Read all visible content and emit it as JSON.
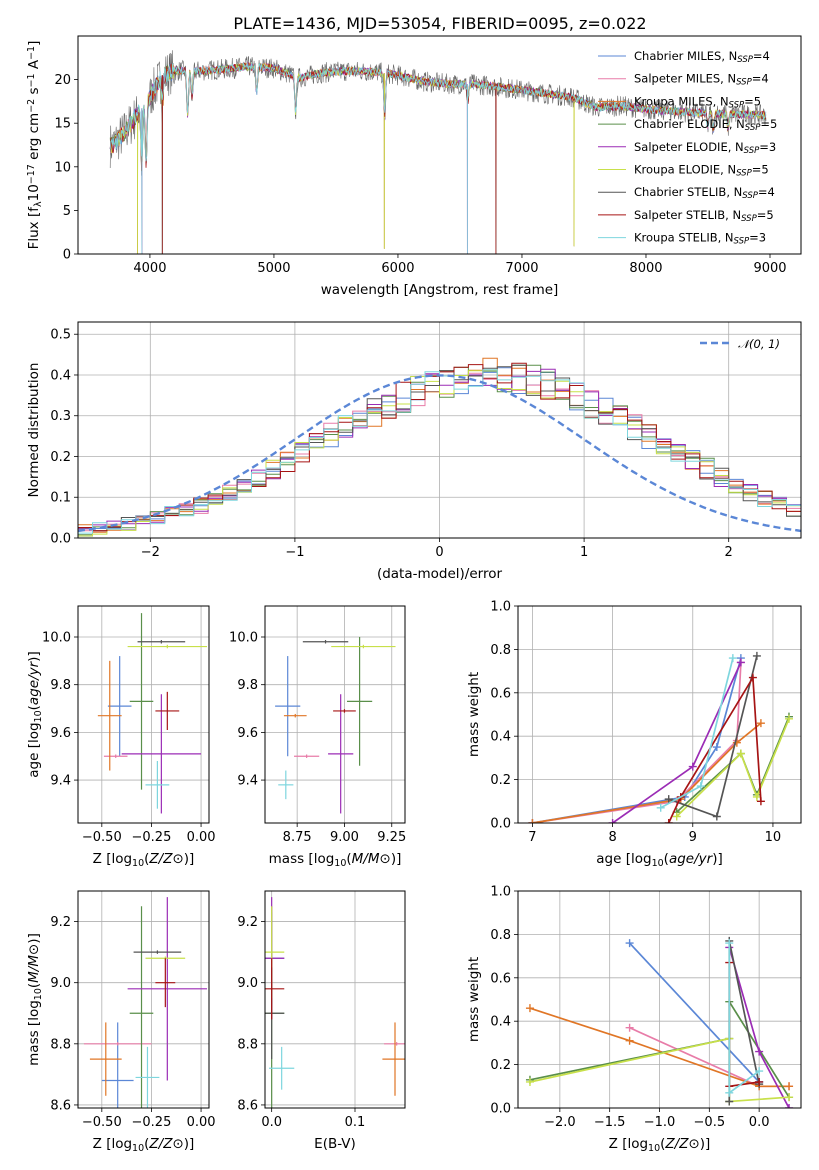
{
  "title": "PLATE=1436, MJD=53054, FIBERID=0095, z=0.022",
  "colors": {
    "Chabrier MILES": "#5b87d6",
    "Salpeter MILES": "#e87ca8",
    "Kroupa MILES": "#e07626",
    "Chabrier ELODIE": "#5a8f4a",
    "Salpeter ELODIE": "#9b2cb5",
    "Kroupa ELODIE": "#c8e04a",
    "Chabrier STELIB": "#555555",
    "Salpeter STELIB": "#a61414",
    "Kroupa STELIB": "#7ed6de",
    "gaussian": "#5b87d6"
  },
  "chart_data": [
    {
      "type": "line",
      "name": "spectrum",
      "xlabel": "wavelength [Angstrom, rest frame]",
      "ylabel_parts": [
        "Flux [f",
        "λ",
        "10",
        "−17",
        " erg cm",
        "−2",
        " s",
        "−1",
        " A",
        "−1",
        "]"
      ],
      "xlim": [
        3420,
        9250
      ],
      "ylim": [
        0,
        25
      ],
      "xticks": [
        4000,
        5000,
        6000,
        7000,
        8000,
        9000
      ],
      "yticks": [
        0,
        5,
        10,
        15,
        20
      ],
      "legend_position": "top-right",
      "legend": [
        {
          "label": "Chabrier MILES",
          "nssp": "4"
        },
        {
          "label": "Salpeter MILES",
          "nssp": "4"
        },
        {
          "label": "Kroupa MILES",
          "nssp": "5"
        },
        {
          "label": "Chabrier ELODIE",
          "nssp": "5"
        },
        {
          "label": "Salpeter ELODIE",
          "nssp": "3"
        },
        {
          "label": "Kroupa ELODIE",
          "nssp": "5"
        },
        {
          "label": "Chabrier STELIB",
          "nssp": "4"
        },
        {
          "label": "Salpeter STELIB",
          "nssp": "5"
        },
        {
          "label": "Kroupa STELIB",
          "nssp": "3"
        }
      ],
      "legend_nssp_prefix": "N",
      "legend_nssp_sub": "SSP",
      "continuum": [
        [
          3700,
          12.5
        ],
        [
          3800,
          14
        ],
        [
          3900,
          16
        ],
        [
          4000,
          18
        ],
        [
          4100,
          20.5
        ],
        [
          4200,
          21
        ],
        [
          4400,
          21
        ],
        [
          4600,
          21.2
        ],
        [
          4800,
          21.5
        ],
        [
          5000,
          21.3
        ],
        [
          5200,
          20.2
        ],
        [
          5400,
          20.8
        ],
        [
          5600,
          21
        ],
        [
          5800,
          20.9
        ],
        [
          6000,
          20.5
        ],
        [
          6200,
          19.8
        ],
        [
          6400,
          19.5
        ],
        [
          6600,
          19.5
        ],
        [
          6800,
          19.2
        ],
        [
          7000,
          18.8
        ],
        [
          7200,
          18.4
        ],
        [
          7400,
          18
        ],
        [
          7600,
          16.8
        ],
        [
          7800,
          17
        ],
        [
          8000,
          16.6
        ],
        [
          8200,
          16.4
        ],
        [
          8400,
          16.2
        ],
        [
          8600,
          16.1
        ],
        [
          8800,
          16
        ],
        [
          8950,
          15.9
        ]
      ],
      "absorption_features": [
        [
          3934,
          6.5
        ],
        [
          3969,
          7
        ],
        [
          4102,
          3
        ],
        [
          4304,
          5
        ],
        [
          4340,
          3
        ],
        [
          4861,
          3
        ],
        [
          5175,
          4
        ],
        [
          5893,
          5
        ],
        [
          6563,
          2
        ],
        [
          8498,
          1.5
        ],
        [
          8542,
          2
        ],
        [
          8662,
          1.6
        ]
      ],
      "data_dropouts": [
        [
          3900,
          0
        ],
        [
          3935,
          0
        ],
        [
          4100,
          0
        ],
        [
          5890,
          0.6
        ],
        [
          6560,
          0
        ],
        [
          6790,
          0
        ],
        [
          7420,
          0.9
        ]
      ]
    },
    {
      "type": "line",
      "name": "residual-histogram",
      "xlabel": "(data-model)/error",
      "ylabel": "Normed distribution",
      "xlim": [
        -2.5,
        2.5
      ],
      "ylim": [
        0,
        0.53
      ],
      "xticks": [
        -2,
        -1,
        0,
        1,
        2
      ],
      "xtick_labels": [
        "−2",
        "−1",
        "0",
        "1",
        "2"
      ],
      "yticks": [
        0,
        0.1,
        0.2,
        0.3,
        0.4,
        0.5
      ],
      "ytick_labels": [
        "0.0",
        "0.1",
        "0.2",
        "0.3",
        "0.4",
        "0.5"
      ],
      "legend": "𝒩(0, 1)",
      "legend_position": "top-right",
      "bin_width": 0.1,
      "bin_start": -2.5,
      "series_base": [
        0.02,
        0.025,
        0.03,
        0.035,
        0.04,
        0.05,
        0.06,
        0.07,
        0.08,
        0.095,
        0.11,
        0.13,
        0.15,
        0.17,
        0.19,
        0.21,
        0.23,
        0.25,
        0.27,
        0.29,
        0.31,
        0.33,
        0.345,
        0.36,
        0.375,
        0.385,
        0.395,
        0.4,
        0.4,
        0.4,
        0.395,
        0.385,
        0.375,
        0.36,
        0.345,
        0.33,
        0.31,
        0.29,
        0.27,
        0.25,
        0.23,
        0.21,
        0.19,
        0.17,
        0.15,
        0.13,
        0.11,
        0.095,
        0.08,
        0.07
      ],
      "gaussian": {
        "mu": 0,
        "sigma": 1
      }
    },
    {
      "type": "scatter",
      "name": "age-vs-Z",
      "xlabel": "Z [log10(Z/Z⊙)]",
      "ylabel": "age [log10(age/yr)]",
      "xlim": [
        -0.62,
        0.04
      ],
      "ylim": [
        9.22,
        10.13
      ],
      "xticks": [
        -0.5,
        -0.25,
        0
      ],
      "xtick_labels": [
        "−0.50",
        "−0.25",
        "0.00"
      ],
      "yticks": [
        9.4,
        9.6,
        9.8,
        10.0
      ],
      "ytick_labels": [
        "9.4",
        "9.6",
        "9.8",
        "10.0"
      ],
      "points": [
        {
          "model": "Chabrier MILES",
          "x": -0.41,
          "y": 9.71,
          "xerr": 0.0,
          "yerr": 0.21
        },
        {
          "model": "Salpeter MILES",
          "x": -0.43,
          "y": 9.5,
          "xerr": 0.0,
          "yerr": 0.0
        },
        {
          "model": "Kroupa MILES",
          "x": -0.46,
          "y": 9.67,
          "xerr": 0.06,
          "yerr": 0.23
        },
        {
          "model": "Chabrier ELODIE",
          "x": -0.3,
          "y": 9.73,
          "xerr": 0.0,
          "yerr": 0.37
        },
        {
          "model": "Salpeter ELODIE",
          "x": -0.2,
          "y": 9.51,
          "xerr": 0.2,
          "yerr": 0.25
        },
        {
          "model": "Kroupa ELODIE",
          "x": -0.17,
          "y": 9.96,
          "xerr": 0.2,
          "yerr": 0.0
        },
        {
          "model": "Chabrier STELIB",
          "x": -0.2,
          "y": 9.98,
          "xerr": 0.12,
          "yerr": 0.0
        },
        {
          "model": "Salpeter STELIB",
          "x": -0.17,
          "y": 9.69,
          "xerr": 0.06,
          "yerr": 0.08
        },
        {
          "model": "Kroupa STELIB",
          "x": -0.22,
          "y": 9.38,
          "xerr": 0.06,
          "yerr": 0.1
        }
      ]
    },
    {
      "type": "scatter",
      "name": "age-vs-mass",
      "xlabel": "mass [log10(M/M⊙)]",
      "ylabel": "",
      "xlim": [
        8.58,
        9.32
      ],
      "ylim": [
        9.22,
        10.13
      ],
      "xticks": [
        8.75,
        9.0,
        9.25
      ],
      "xtick_labels": [
        "8.75",
        "9.00",
        "9.25"
      ],
      "yticks": [
        9.4,
        9.6,
        9.8,
        10.0
      ],
      "ytick_labels": [
        "9.4",
        "9.6",
        "9.8",
        "10.0"
      ],
      "points": [
        {
          "model": "Chabrier MILES",
          "x": 8.7,
          "y": 9.71,
          "xerr": 0.0,
          "yerr": 0.21
        },
        {
          "model": "Salpeter MILES",
          "x": 8.8,
          "y": 9.5,
          "xerr": 0.0,
          "yerr": 0.0
        },
        {
          "model": "Kroupa MILES",
          "x": 8.74,
          "y": 9.67,
          "xerr": 0.06,
          "yerr": 0.0
        },
        {
          "model": "Chabrier ELODIE",
          "x": 9.08,
          "y": 9.73,
          "xerr": 0.0,
          "yerr": 0.27
        },
        {
          "model": "Salpeter ELODIE",
          "x": 8.98,
          "y": 9.51,
          "xerr": 0.0,
          "yerr": 0.25
        },
        {
          "model": "Kroupa ELODIE",
          "x": 9.1,
          "y": 9.96,
          "xerr": 0.17,
          "yerr": 0.0
        },
        {
          "model": "Chabrier STELIB",
          "x": 8.9,
          "y": 9.98,
          "xerr": 0.12,
          "yerr": 0.0
        },
        {
          "model": "Salpeter STELIB",
          "x": 9.0,
          "y": 9.69,
          "xerr": 0.06,
          "yerr": 0.0
        },
        {
          "model": "Kroupa STELIB",
          "x": 8.69,
          "y": 9.38,
          "xerr": 0.04,
          "yerr": 0.06
        }
      ]
    },
    {
      "type": "line",
      "name": "mass-weight-vs-age",
      "xlabel": "age [log10(age/yr)]",
      "ylabel": "mass weight",
      "xlim": [
        6.82,
        10.35
      ],
      "ylim": [
        0,
        1
      ],
      "xticks": [
        7,
        8,
        9,
        10
      ],
      "yticks": [
        0,
        0.2,
        0.4,
        0.6,
        0.8,
        1.0
      ],
      "ytick_labels": [
        "0.0",
        "0.2",
        "0.4",
        "0.6",
        "0.8",
        "1.0"
      ],
      "series": [
        {
          "model": "Chabrier MILES",
          "x": [
            7.0,
            8.9,
            9.3,
            9.6
          ],
          "y": [
            0.0,
            0.12,
            0.35,
            0.76
          ]
        },
        {
          "model": "Salpeter MILES",
          "x": [
            7.0,
            8.8,
            9.55,
            9.6
          ],
          "y": [
            0.0,
            0.1,
            0.38,
            0.74
          ]
        },
        {
          "model": "Kroupa MILES",
          "x": [
            7.0,
            8.85,
            9.55,
            9.85
          ],
          "y": [
            0.0,
            0.11,
            0.37,
            0.46
          ]
        },
        {
          "model": "Chabrier ELODIE",
          "x": [
            8.8,
            9.6,
            9.8,
            10.2
          ],
          "y": [
            0.05,
            0.32,
            0.13,
            0.49
          ]
        },
        {
          "model": "Salpeter ELODIE",
          "x": [
            8.0,
            9.0,
            9.6
          ],
          "y": [
            0.0,
            0.26,
            0.74
          ]
        },
        {
          "model": "Kroupa ELODIE",
          "x": [
            8.8,
            9.6,
            9.8,
            10.2
          ],
          "y": [
            0.03,
            0.32,
            0.12,
            0.48
          ]
        },
        {
          "model": "Chabrier STELIB",
          "x": [
            8.7,
            9.3,
            9.8
          ],
          "y": [
            0.11,
            0.03,
            0.77
          ]
        },
        {
          "model": "Salpeter STELIB",
          "x": [
            8.7,
            8.85,
            9.75,
            9.85
          ],
          "y": [
            0.0,
            0.12,
            0.67,
            0.1
          ]
        },
        {
          "model": "Kroupa STELIB",
          "x": [
            8.6,
            9.1,
            9.5
          ],
          "y": [
            0.07,
            0.17,
            0.76
          ]
        }
      ]
    },
    {
      "type": "scatter",
      "name": "mass-vs-Z",
      "xlabel": "Z [log10(Z/Z⊙)]",
      "ylabel": "mass [log10(M/M⊙)]",
      "xlim": [
        -0.62,
        0.04
      ],
      "ylim": [
        8.59,
        9.3
      ],
      "xticks": [
        -0.5,
        -0.25,
        0
      ],
      "xtick_labels": [
        "−0.50",
        "−0.25",
        "0.00"
      ],
      "yticks": [
        8.6,
        8.8,
        9.0,
        9.2
      ],
      "ytick_labels": [
        "8.6",
        "8.8",
        "9.0",
        "9.2"
      ],
      "points": [
        {
          "model": "Chabrier MILES",
          "x": -0.42,
          "y": 8.68,
          "xerr": 0.08,
          "yerr": 0.19
        },
        {
          "model": "Salpeter MILES",
          "x": -0.42,
          "y": 8.8,
          "xerr": 0.17,
          "yerr": 0.0
        },
        {
          "model": "Kroupa MILES",
          "x": -0.48,
          "y": 8.75,
          "xerr": 0.08,
          "yerr": 0.12
        },
        {
          "model": "Chabrier ELODIE",
          "x": -0.3,
          "y": 8.9,
          "xerr": 0.0,
          "yerr": 0.35
        },
        {
          "model": "Salpeter ELODIE",
          "x": -0.17,
          "y": 8.98,
          "xerr": 0.2,
          "yerr": 0.3
        },
        {
          "model": "Kroupa ELODIE",
          "x": -0.18,
          "y": 9.08,
          "xerr": 0.1,
          "yerr": 0.0
        },
        {
          "model": "Chabrier STELIB",
          "x": -0.22,
          "y": 9.1,
          "xerr": 0.12,
          "yerr": 0.0
        },
        {
          "model": "Salpeter STELIB",
          "x": -0.18,
          "y": 9.0,
          "xerr": 0.05,
          "yerr": 0.08
        },
        {
          "model": "Kroupa STELIB",
          "x": -0.27,
          "y": 8.69,
          "xerr": 0.06,
          "yerr": 0.1
        }
      ]
    },
    {
      "type": "scatter",
      "name": "mass-vs-EBV",
      "xlabel": "E(B-V)",
      "ylabel": "",
      "xlim": [
        -0.008,
        0.16
      ],
      "ylim": [
        8.59,
        9.3
      ],
      "xticks": [
        0.0,
        0.1
      ],
      "xtick_labels": [
        "0.0",
        "0.1"
      ],
      "yticks": [
        8.6,
        8.8,
        9.0,
        9.2
      ],
      "ytick_labels": [
        "8.6",
        "8.8",
        "9.0",
        "9.2"
      ],
      "points": [
        {
          "model": "Chabrier MILES",
          "x": 0.0,
          "y": 9.08,
          "xerr": 0.0,
          "yerr": 0.15
        },
        {
          "model": "Salpeter MILES",
          "x": 0.15,
          "y": 8.8,
          "xerr": 0.0,
          "yerr": 0.0
        },
        {
          "model": "Kroupa MILES",
          "x": 0.148,
          "y": 8.75,
          "xerr": 0.0,
          "yerr": 0.12
        },
        {
          "model": "Chabrier ELODIE",
          "x": 0.0,
          "y": 8.9,
          "xerr": 0.0,
          "yerr": 0.35
        },
        {
          "model": "Salpeter ELODIE",
          "x": 0.0,
          "y": 9.08,
          "xerr": 0.0,
          "yerr": 0.2
        },
        {
          "model": "Kroupa ELODIE",
          "x": 0.0,
          "y": 9.1,
          "xerr": 0.0,
          "yerr": 0.15
        },
        {
          "model": "Chabrier STELIB",
          "x": 0.0,
          "y": 8.9,
          "xerr": 0.0,
          "yerr": 0.15
        },
        {
          "model": "Salpeter STELIB",
          "x": 0.0,
          "y": 8.98,
          "xerr": 0.0,
          "yerr": 0.1
        },
        {
          "model": "Kroupa STELIB",
          "x": 0.012,
          "y": 8.72,
          "xerr": 0.0,
          "yerr": 0.07
        }
      ]
    },
    {
      "type": "line",
      "name": "mass-weight-vs-Z",
      "xlabel": "Z [log10(Z/Z⊙)]",
      "ylabel": "mass weight",
      "xlim": [
        -2.42,
        0.42
      ],
      "ylim": [
        0,
        1
      ],
      "xticks": [
        -2.0,
        -1.5,
        -1.0,
        -0.5,
        0.0
      ],
      "xtick_labels": [
        "−2.0",
        "−1.5",
        "−1.0",
        "−0.5",
        "0.0"
      ],
      "yticks": [
        0,
        0.2,
        0.4,
        0.6,
        0.8,
        1.0
      ],
      "ytick_labels": [
        "0.0",
        "0.2",
        "0.4",
        "0.6",
        "0.8",
        "1.0"
      ],
      "series": [
        {
          "model": "Chabrier MILES",
          "x": [
            -1.3,
            0.0,
            0.0
          ],
          "y": [
            0.76,
            0.12,
            0.12
          ]
        },
        {
          "model": "Salpeter MILES",
          "x": [
            -1.3,
            0.0,
            0.3
          ],
          "y": [
            0.37,
            0.1,
            0.1
          ]
        },
        {
          "model": "Kroupa MILES",
          "x": [
            -2.3,
            -1.3,
            0.0,
            0.3
          ],
          "y": [
            0.46,
            0.31,
            0.1,
            0.1
          ]
        },
        {
          "model": "Chabrier ELODIE",
          "x": [
            -2.3,
            -0.3,
            -0.3,
            0.3
          ],
          "y": [
            0.13,
            0.32,
            0.49,
            0.05
          ]
        },
        {
          "model": "Salpeter ELODIE",
          "x": [
            -0.3,
            0.0,
            0.3
          ],
          "y": [
            0.74,
            0.26,
            0.0
          ]
        },
        {
          "model": "Kroupa ELODIE",
          "x": [
            -2.3,
            -0.3,
            -0.3,
            0.3
          ],
          "y": [
            0.12,
            0.32,
            0.03,
            0.05
          ]
        },
        {
          "model": "Chabrier STELIB",
          "x": [
            -0.3,
            -0.3,
            0.0
          ],
          "y": [
            0.03,
            0.77,
            0.11
          ]
        },
        {
          "model": "Salpeter STELIB",
          "x": [
            -0.3,
            -0.3,
            0.0
          ],
          "y": [
            0.67,
            0.1,
            0.12
          ]
        },
        {
          "model": "Kroupa STELIB",
          "x": [
            -0.3,
            -0.3,
            0.0
          ],
          "y": [
            0.76,
            0.07,
            0.17
          ]
        }
      ]
    }
  ]
}
